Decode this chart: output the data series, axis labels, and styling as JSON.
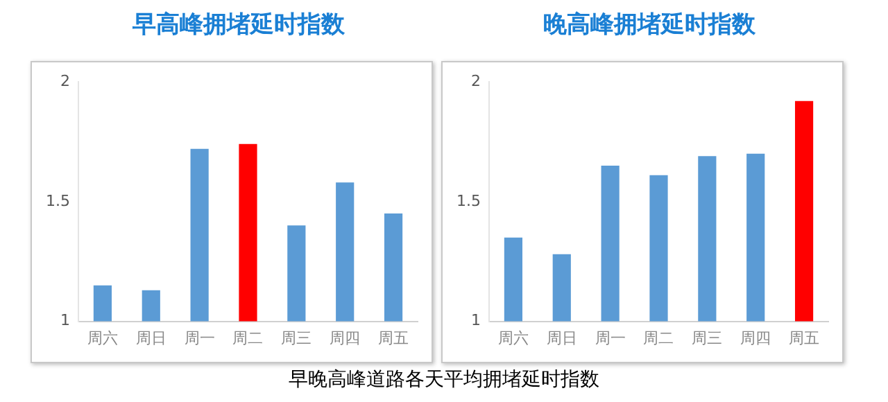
{
  "chart_data": [
    {
      "type": "bar",
      "title": "早高峰拥堵延时指数",
      "categories": [
        "周六",
        "周日",
        "周一",
        "周二",
        "周三",
        "周四",
        "周五"
      ],
      "values": [
        1.15,
        1.13,
        1.72,
        1.74,
        1.4,
        1.58,
        1.45
      ],
      "colors": [
        "#5b9bd5",
        "#5b9bd5",
        "#5b9bd5",
        "#ff0000",
        "#5b9bd5",
        "#5b9bd5",
        "#5b9bd5"
      ],
      "ylim": [
        1,
        2
      ],
      "yticks": [
        1,
        1.5,
        2
      ],
      "grid": false,
      "legend": false
    },
    {
      "type": "bar",
      "title": "晚高峰拥堵延时指数",
      "categories": [
        "周六",
        "周日",
        "周一",
        "周二",
        "周三",
        "周四",
        "周五"
      ],
      "values": [
        1.35,
        1.28,
        1.65,
        1.61,
        1.69,
        1.7,
        1.92
      ],
      "colors": [
        "#5b9bd5",
        "#5b9bd5",
        "#5b9bd5",
        "#5b9bd5",
        "#5b9bd5",
        "#5b9bd5",
        "#ff0000"
      ],
      "ylim": [
        1,
        2
      ],
      "yticks": [
        1,
        1.5,
        2
      ],
      "grid": false,
      "legend": false,
      "annotations": [
        "早晚高峰道路各天平均拥堵延时指数"
      ]
    }
  ]
}
